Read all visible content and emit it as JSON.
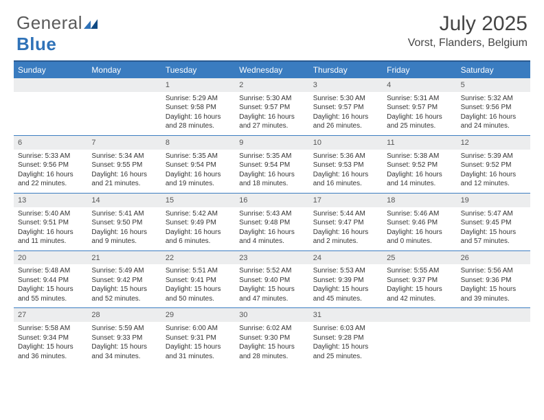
{
  "logo": {
    "text1": "General",
    "text2": "Blue"
  },
  "title": {
    "month": "July 2025",
    "location": "Vorst, Flanders, Belgium"
  },
  "style": {
    "header_bg": "#3a7cc0",
    "header_border": "#2a5a90",
    "daynum_bg": "#ecedee",
    "week_border": "#3a7cc0",
    "logo_gray": "#5a5a5a",
    "logo_blue": "#2f72b8",
    "title_color": "#444444",
    "body_text": "#333333",
    "fontsize_daynum": 11,
    "fontsize_body": 10,
    "fontsize_header": 12
  },
  "day_names": [
    "Sunday",
    "Monday",
    "Tuesday",
    "Wednesday",
    "Thursday",
    "Friday",
    "Saturday"
  ],
  "weeks": [
    [
      {
        "n": "",
        "sr": "",
        "ss": "",
        "dl1": "",
        "dl2": ""
      },
      {
        "n": "",
        "sr": "",
        "ss": "",
        "dl1": "",
        "dl2": ""
      },
      {
        "n": "1",
        "sr": "Sunrise: 5:29 AM",
        "ss": "Sunset: 9:58 PM",
        "dl1": "Daylight: 16 hours",
        "dl2": "and 28 minutes."
      },
      {
        "n": "2",
        "sr": "Sunrise: 5:30 AM",
        "ss": "Sunset: 9:57 PM",
        "dl1": "Daylight: 16 hours",
        "dl2": "and 27 minutes."
      },
      {
        "n": "3",
        "sr": "Sunrise: 5:30 AM",
        "ss": "Sunset: 9:57 PM",
        "dl1": "Daylight: 16 hours",
        "dl2": "and 26 minutes."
      },
      {
        "n": "4",
        "sr": "Sunrise: 5:31 AM",
        "ss": "Sunset: 9:57 PM",
        "dl1": "Daylight: 16 hours",
        "dl2": "and 25 minutes."
      },
      {
        "n": "5",
        "sr": "Sunrise: 5:32 AM",
        "ss": "Sunset: 9:56 PM",
        "dl1": "Daylight: 16 hours",
        "dl2": "and 24 minutes."
      }
    ],
    [
      {
        "n": "6",
        "sr": "Sunrise: 5:33 AM",
        "ss": "Sunset: 9:56 PM",
        "dl1": "Daylight: 16 hours",
        "dl2": "and 22 minutes."
      },
      {
        "n": "7",
        "sr": "Sunrise: 5:34 AM",
        "ss": "Sunset: 9:55 PM",
        "dl1": "Daylight: 16 hours",
        "dl2": "and 21 minutes."
      },
      {
        "n": "8",
        "sr": "Sunrise: 5:35 AM",
        "ss": "Sunset: 9:54 PM",
        "dl1": "Daylight: 16 hours",
        "dl2": "and 19 minutes."
      },
      {
        "n": "9",
        "sr": "Sunrise: 5:35 AM",
        "ss": "Sunset: 9:54 PM",
        "dl1": "Daylight: 16 hours",
        "dl2": "and 18 minutes."
      },
      {
        "n": "10",
        "sr": "Sunrise: 5:36 AM",
        "ss": "Sunset: 9:53 PM",
        "dl1": "Daylight: 16 hours",
        "dl2": "and 16 minutes."
      },
      {
        "n": "11",
        "sr": "Sunrise: 5:38 AM",
        "ss": "Sunset: 9:52 PM",
        "dl1": "Daylight: 16 hours",
        "dl2": "and 14 minutes."
      },
      {
        "n": "12",
        "sr": "Sunrise: 5:39 AM",
        "ss": "Sunset: 9:52 PM",
        "dl1": "Daylight: 16 hours",
        "dl2": "and 12 minutes."
      }
    ],
    [
      {
        "n": "13",
        "sr": "Sunrise: 5:40 AM",
        "ss": "Sunset: 9:51 PM",
        "dl1": "Daylight: 16 hours",
        "dl2": "and 11 minutes."
      },
      {
        "n": "14",
        "sr": "Sunrise: 5:41 AM",
        "ss": "Sunset: 9:50 PM",
        "dl1": "Daylight: 16 hours",
        "dl2": "and 9 minutes."
      },
      {
        "n": "15",
        "sr": "Sunrise: 5:42 AM",
        "ss": "Sunset: 9:49 PM",
        "dl1": "Daylight: 16 hours",
        "dl2": "and 6 minutes."
      },
      {
        "n": "16",
        "sr": "Sunrise: 5:43 AM",
        "ss": "Sunset: 9:48 PM",
        "dl1": "Daylight: 16 hours",
        "dl2": "and 4 minutes."
      },
      {
        "n": "17",
        "sr": "Sunrise: 5:44 AM",
        "ss": "Sunset: 9:47 PM",
        "dl1": "Daylight: 16 hours",
        "dl2": "and 2 minutes."
      },
      {
        "n": "18",
        "sr": "Sunrise: 5:46 AM",
        "ss": "Sunset: 9:46 PM",
        "dl1": "Daylight: 16 hours",
        "dl2": "and 0 minutes."
      },
      {
        "n": "19",
        "sr": "Sunrise: 5:47 AM",
        "ss": "Sunset: 9:45 PM",
        "dl1": "Daylight: 15 hours",
        "dl2": "and 57 minutes."
      }
    ],
    [
      {
        "n": "20",
        "sr": "Sunrise: 5:48 AM",
        "ss": "Sunset: 9:44 PM",
        "dl1": "Daylight: 15 hours",
        "dl2": "and 55 minutes."
      },
      {
        "n": "21",
        "sr": "Sunrise: 5:49 AM",
        "ss": "Sunset: 9:42 PM",
        "dl1": "Daylight: 15 hours",
        "dl2": "and 52 minutes."
      },
      {
        "n": "22",
        "sr": "Sunrise: 5:51 AM",
        "ss": "Sunset: 9:41 PM",
        "dl1": "Daylight: 15 hours",
        "dl2": "and 50 minutes."
      },
      {
        "n": "23",
        "sr": "Sunrise: 5:52 AM",
        "ss": "Sunset: 9:40 PM",
        "dl1": "Daylight: 15 hours",
        "dl2": "and 47 minutes."
      },
      {
        "n": "24",
        "sr": "Sunrise: 5:53 AM",
        "ss": "Sunset: 9:39 PM",
        "dl1": "Daylight: 15 hours",
        "dl2": "and 45 minutes."
      },
      {
        "n": "25",
        "sr": "Sunrise: 5:55 AM",
        "ss": "Sunset: 9:37 PM",
        "dl1": "Daylight: 15 hours",
        "dl2": "and 42 minutes."
      },
      {
        "n": "26",
        "sr": "Sunrise: 5:56 AM",
        "ss": "Sunset: 9:36 PM",
        "dl1": "Daylight: 15 hours",
        "dl2": "and 39 minutes."
      }
    ],
    [
      {
        "n": "27",
        "sr": "Sunrise: 5:58 AM",
        "ss": "Sunset: 9:34 PM",
        "dl1": "Daylight: 15 hours",
        "dl2": "and 36 minutes."
      },
      {
        "n": "28",
        "sr": "Sunrise: 5:59 AM",
        "ss": "Sunset: 9:33 PM",
        "dl1": "Daylight: 15 hours",
        "dl2": "and 34 minutes."
      },
      {
        "n": "29",
        "sr": "Sunrise: 6:00 AM",
        "ss": "Sunset: 9:31 PM",
        "dl1": "Daylight: 15 hours",
        "dl2": "and 31 minutes."
      },
      {
        "n": "30",
        "sr": "Sunrise: 6:02 AM",
        "ss": "Sunset: 9:30 PM",
        "dl1": "Daylight: 15 hours",
        "dl2": "and 28 minutes."
      },
      {
        "n": "31",
        "sr": "Sunrise: 6:03 AM",
        "ss": "Sunset: 9:28 PM",
        "dl1": "Daylight: 15 hours",
        "dl2": "and 25 minutes."
      },
      {
        "n": "",
        "sr": "",
        "ss": "",
        "dl1": "",
        "dl2": ""
      },
      {
        "n": "",
        "sr": "",
        "ss": "",
        "dl1": "",
        "dl2": ""
      }
    ]
  ]
}
